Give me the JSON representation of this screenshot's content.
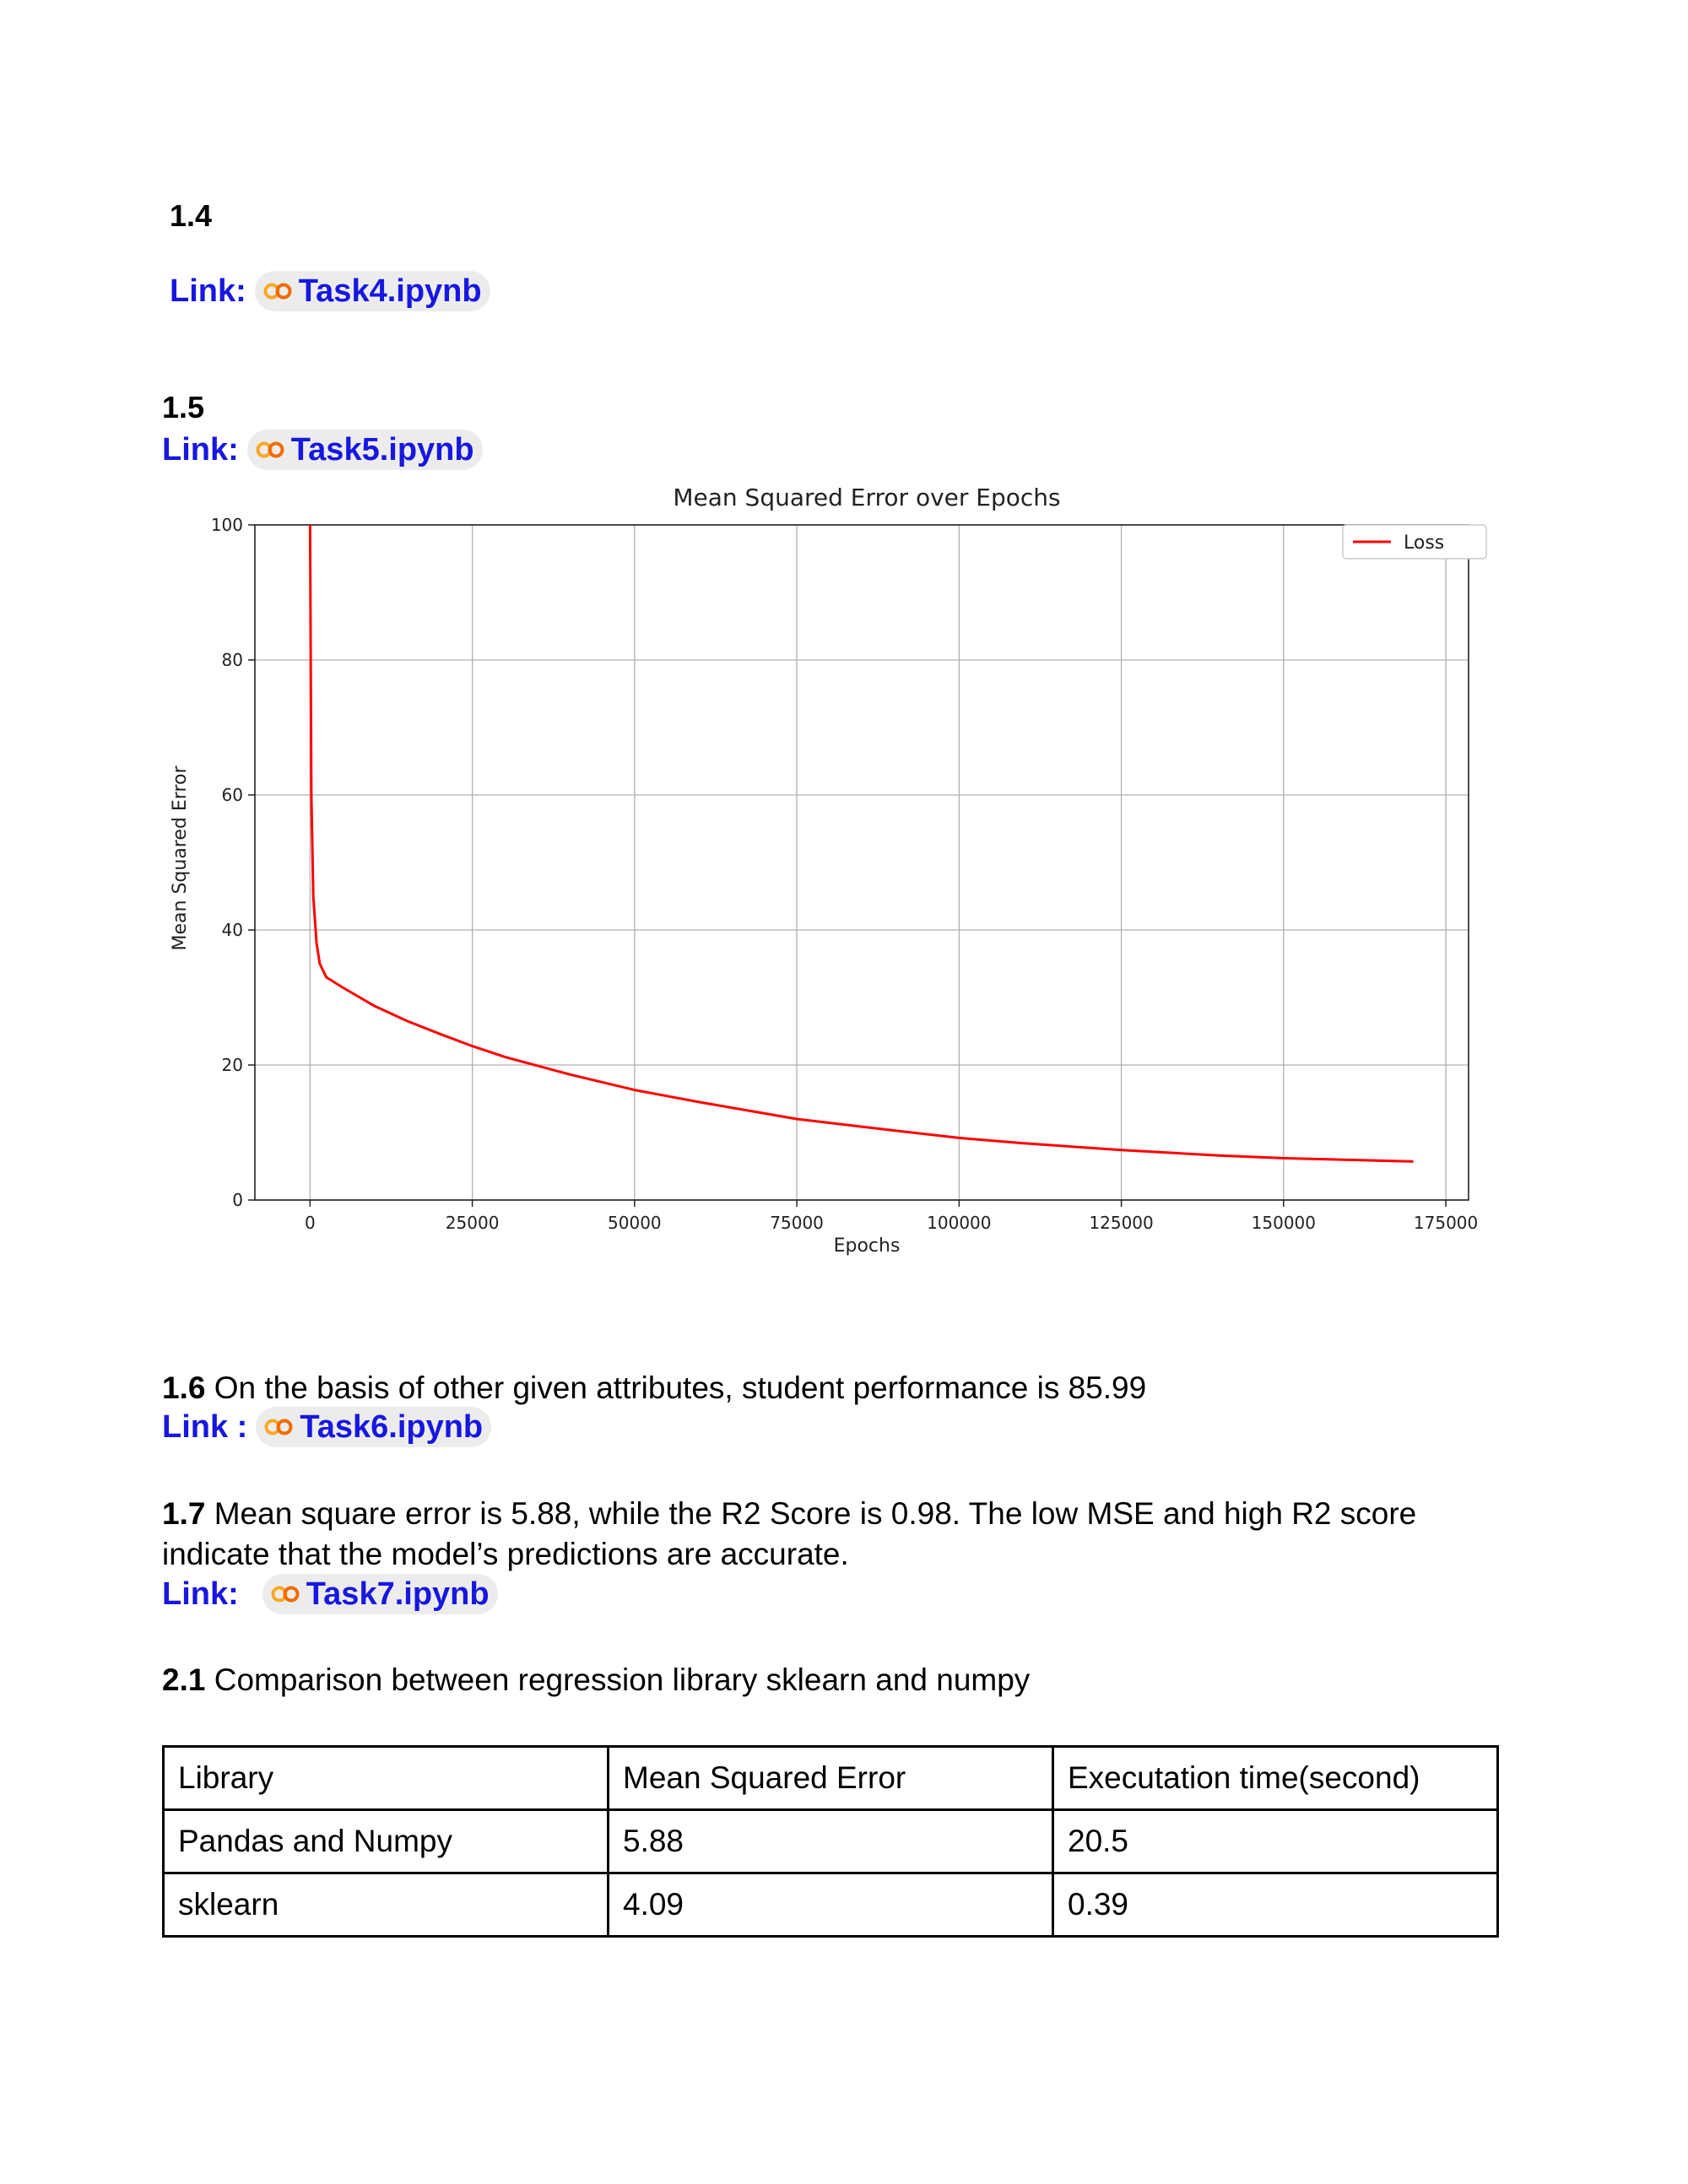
{
  "sections": {
    "s14": {
      "number": "1.4",
      "link_label": "Link:",
      "link_text": "Task4.ipynb",
      "icon": "colab-icon"
    },
    "s15": {
      "number": "1.5",
      "link_label": "Link:",
      "link_text": "Task5.ipynb",
      "icon": "colab-icon"
    },
    "s16": {
      "number": "1.6",
      "text": " On the basis of other given attributes, student performance is 85.99",
      "link_label": "Link :",
      "link_text": "Task6.ipynb",
      "icon": "colab-icon"
    },
    "s17": {
      "number": "1.7",
      "text": " Mean square error is 5.88, while the R2 Score is 0.98. The low MSE and high R2 score indicate that the model’s predictions are accurate.",
      "link_label": "Link:",
      "link_text": "Task7.ipynb",
      "icon": "colab-icon"
    },
    "s21": {
      "number": "2.1",
      "text": " Comparison between regression library sklearn and numpy"
    }
  },
  "table": {
    "headers": [
      "Library",
      "Mean Squared Error",
      "Executation time(second)"
    ],
    "rows": [
      [
        "Pandas and Numpy",
        "5.88",
        "20.5"
      ],
      [
        "sklearn",
        "4.09",
        "0.39"
      ]
    ]
  },
  "colors": {
    "link": "#1717e0",
    "line": "#ff0000",
    "grid": "#b0b0b0"
  },
  "chart_data": {
    "type": "line",
    "title": "Mean Squared Error over Epochs",
    "xlabel": "Epochs",
    "ylabel": "Mean Squared Error",
    "xlim": [
      -8500,
      178500
    ],
    "ylim": [
      0,
      100
    ],
    "x_ticks": [
      0,
      25000,
      50000,
      75000,
      100000,
      125000,
      150000,
      175000
    ],
    "y_ticks": [
      0,
      20,
      40,
      60,
      80,
      100
    ],
    "grid": true,
    "legend_position": "top-right",
    "series": [
      {
        "name": "Loss",
        "color": "#ff0000",
        "x": [
          0,
          200,
          500,
          1000,
          1500,
          2500,
          5000,
          10000,
          15000,
          20000,
          25000,
          30000,
          40000,
          50000,
          60000,
          75000,
          90000,
          100000,
          110000,
          125000,
          140000,
          150000,
          160000,
          170000
        ],
        "y": [
          100,
          60,
          45,
          38,
          35,
          33,
          31.5,
          28.7,
          26.5,
          24.6,
          22.8,
          21.2,
          18.6,
          16.3,
          14.5,
          12.0,
          10.3,
          9.2,
          8.4,
          7.4,
          6.6,
          6.2,
          5.95,
          5.7
        ]
      }
    ]
  }
}
